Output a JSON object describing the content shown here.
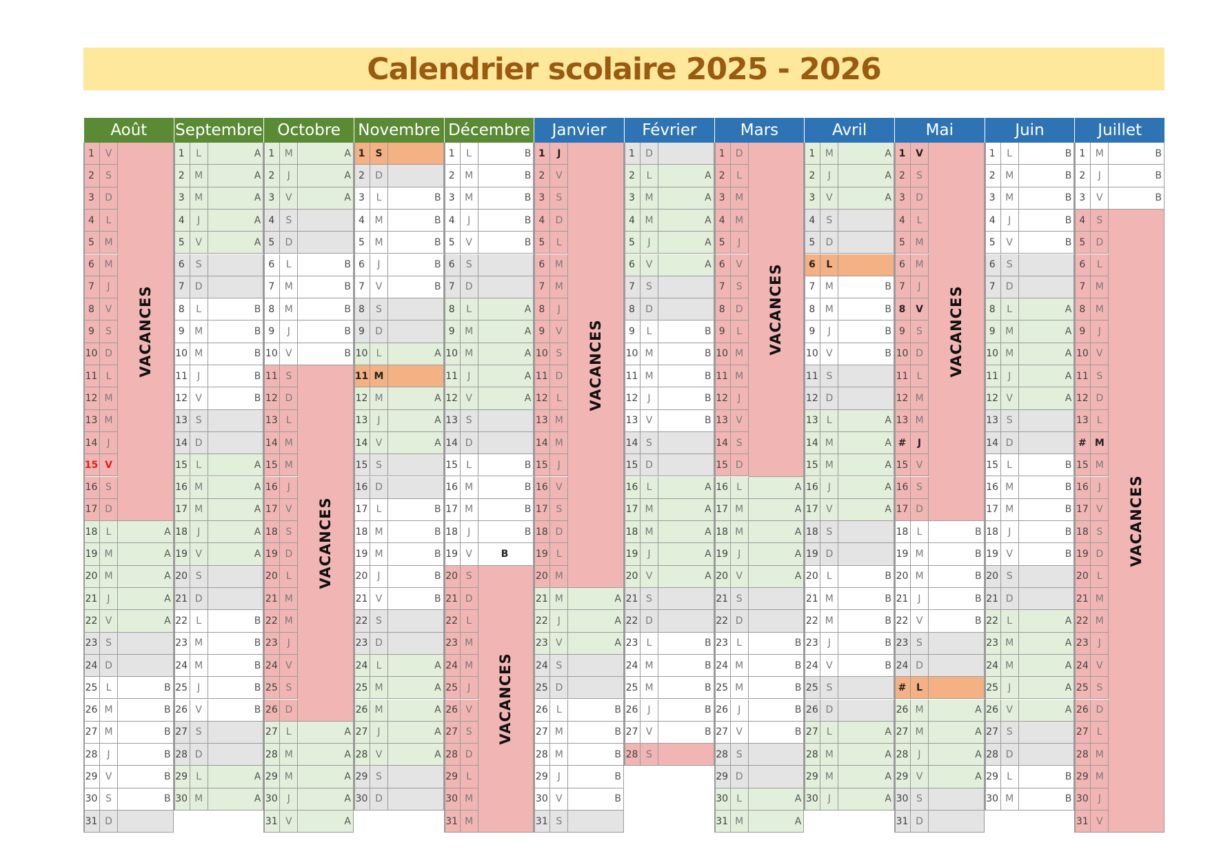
{
  "title": "Calendrier scolaire 2025 - 2026",
  "vacances_label": "VACANCES",
  "colors": {
    "title_bg": "#fde89c",
    "title_text": "#9a5a10",
    "header_green": "#5a8a34",
    "header_blue": "#2e74b5",
    "vacation": "#f1b6b4",
    "week_a": "#e2efdb",
    "weekend": "#e4e4e4",
    "week_b": "#ffffff",
    "holiday_orange": "#f4b183"
  },
  "months": [
    {
      "name": "Août",
      "header": "green",
      "days": "VSDLMMJVSDLMMJVSDLMMJVSDLMMJVSD",
      "flags": "VVVVVVVVVVVVVVVVVAAAAAWWBBBBBBW",
      "special": {
        "15": "red"
      }
    },
    {
      "name": "Septembre",
      "header": "green",
      "days": "LMMJVSDLMMJVSDLMMJVSDLMMJVSDLM",
      "flags": "AAAAAWWBBBBBWWAAAAAWWBBBBBWWAA",
      "special": {}
    },
    {
      "name": "Octobre",
      "header": "green",
      "days": "MJVSDLMMJVSDLMMJVSDLMMJVSDLMMJV",
      "flags": "AAAWWBBBBBVVVVVVVVVVVVVVVVAAAAA",
      "special": {}
    },
    {
      "name": "Novembre",
      "header": "green",
      "days": "SDLMMJVSDLMMJVSDLMMJVSDLMMJVSD",
      "flags": "HWBBBBBWWAHAAAWWBBBBBWWAAAAAWW",
      "special": {
        "1": "bold",
        "11": "bold"
      }
    },
    {
      "name": "Décembre",
      "header": "green",
      "days": "LMMJVSDLMMJVSDLMMJVSDLMMJVSDLMM",
      "flags": "BBBBBWWAAAAAWWBBBBBVVVVVVVVVVVV",
      "special": {
        "19": "bfill"
      }
    },
    {
      "name": "Janvier",
      "header": "blue",
      "days": "JVSDLMMJVSDLMMJVSDLMMJVSDLMMJVS",
      "flags": "VVVVVVVVVVVVVVVVVVVVAAAWWBBBBBW",
      "special": {
        "1": "bold"
      }
    },
    {
      "name": "Février",
      "header": "blue",
      "days": "DLMMJVSDLMMJVSDLMMJVSDLMMJVS",
      "flags": "WAAAAAWWBBBBBWWAAAAAWWBBBBBV",
      "special": {}
    },
    {
      "name": "Mars",
      "header": "blue",
      "days": "DLMMJVSDLMMJVSDLMMJVSDLMMJVSDLM",
      "flags": "VVVVVVVVVVVVVVVAAAAAWWBBBBBWWAA",
      "special": {}
    },
    {
      "name": "Avril",
      "header": "blue",
      "days": "MJVSDLMMJVSDLMMJVSDLMMJVSDLMMJ",
      "flags": "AAAWWHBBBBWWAAAAAWWBBBBBWWAAAA",
      "special": {
        "6": "bold"
      }
    },
    {
      "name": "Mai",
      "header": "blue",
      "days": "VSDLMMJVSDLMMJVSDLMMJVSDLMMJVSD",
      "flags": "VVVVVVVVVVVVVVVVVBBBBBWWHAAAAWW",
      "special": {
        "1": "bold",
        "8": "bold",
        "14": "hash",
        "25": "hash"
      }
    },
    {
      "name": "Juin",
      "header": "blue",
      "days": "LMMJVSDLMMJVSDLMMJVSDLMMJVSDLM",
      "flags": "BBBBBWWAAAAAWWBBBBBWWAAAAAWWBB",
      "special": {}
    },
    {
      "name": "Juillet",
      "header": "blue",
      "days": "MJVSDLMMJVSDLMMJVSDLMMJVSDLMMJV",
      "flags": "BBBVVVVVVVVVVVVVVVVVVVVVVVVVVVV",
      "special": {
        "14": "hash"
      }
    }
  ]
}
